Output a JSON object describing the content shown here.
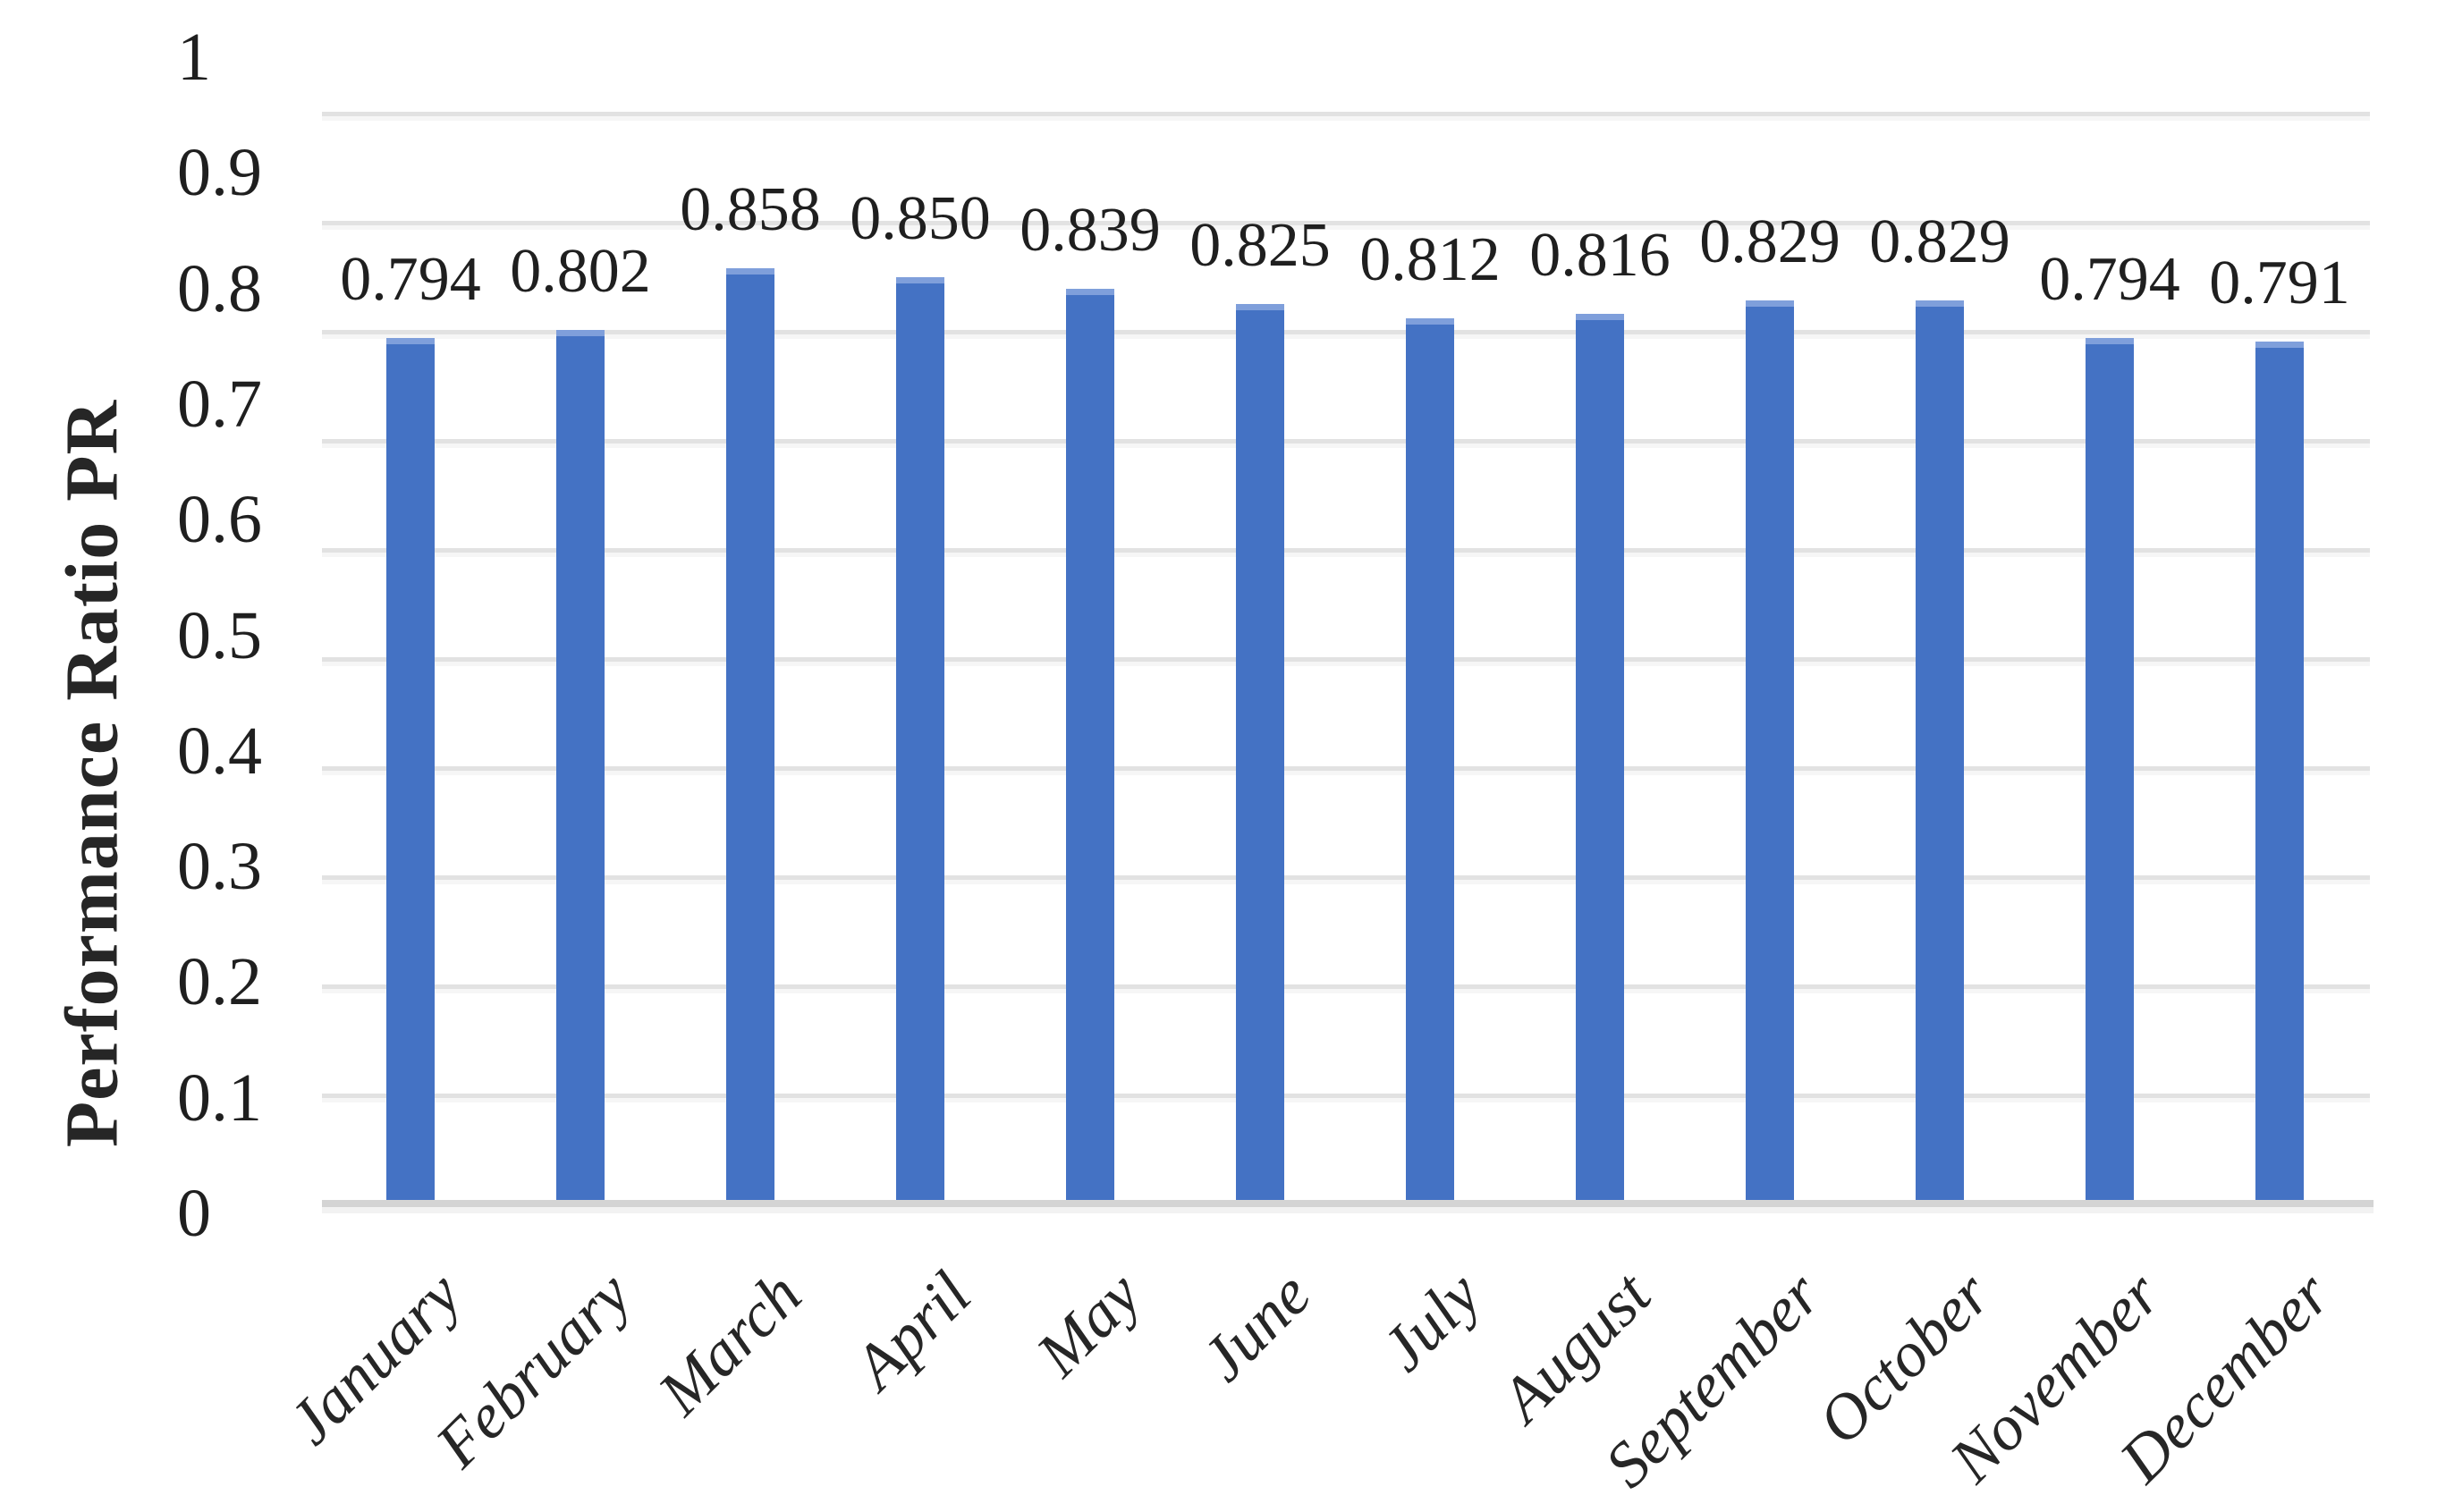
{
  "chart_data": {
    "type": "bar",
    "title": "",
    "categories": [
      "January",
      "February",
      "March",
      "April",
      "May",
      "June",
      "July",
      "August",
      "September",
      "October",
      "November",
      "December"
    ],
    "values": [
      0.794,
      0.802,
      0.858,
      0.85,
      0.839,
      0.825,
      0.812,
      0.816,
      0.829,
      0.829,
      0.794,
      0.791
    ],
    "bar_labels": [
      "0.794",
      "0.802",
      "0.858",
      "0.850",
      "0.839",
      "0.825",
      "0.812",
      "0.816",
      "0.829",
      "0.829",
      "0.794",
      "0.791"
    ],
    "ylabel": "Performance Ratio PR",
    "xlabel": "",
    "ylim": [
      0,
      1
    ],
    "ytick_labels": [
      "0",
      "0.1",
      "0.2",
      "0.3",
      "0.4",
      "0.5",
      "0.6",
      "0.7",
      "0.8",
      "0.9",
      "1"
    ],
    "grid": "horizontal-only",
    "legend": "none",
    "colors": {
      "bar": "#4472C4",
      "bar_top_highlight": "#7F9FDB",
      "gridline": "#E2E2E2",
      "axis_line": "#D4D4D4",
      "tick_text": "#1F1F1F",
      "label_text": "#1F1F1F",
      "background": "#FFFFFF"
    }
  }
}
